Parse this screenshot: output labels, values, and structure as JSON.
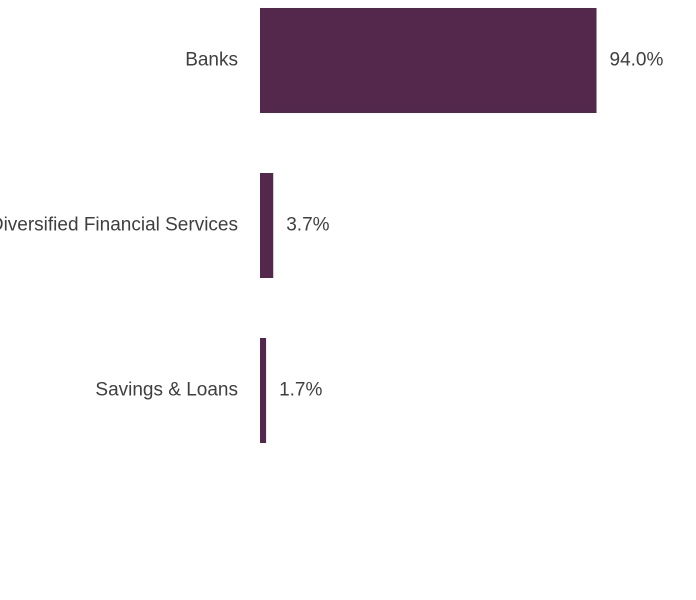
{
  "chart_data": {
    "type": "bar",
    "orientation": "horizontal",
    "categories": [
      "Banks",
      "Diversified Financial Services",
      "Savings & Loans"
    ],
    "values": [
      94.0,
      3.7,
      1.7
    ],
    "value_labels": [
      "94.0%",
      "3.7%",
      "1.7%"
    ],
    "unit": "%",
    "xlim": [
      0,
      100
    ],
    "grid": false,
    "legend": "none",
    "title": "",
    "xlabel": "",
    "ylabel": ""
  },
  "colors": {
    "bar": "#53284c",
    "text": "#3f3f3f",
    "background": "#ffffff"
  }
}
